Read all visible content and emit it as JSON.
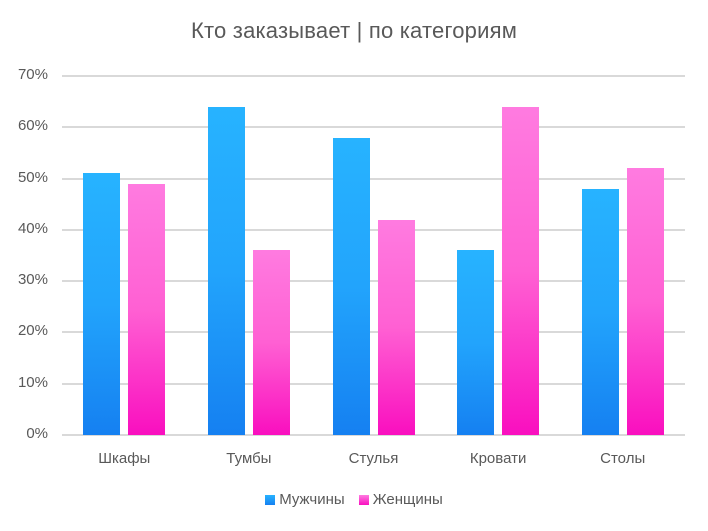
{
  "chart_data": {
    "type": "bar",
    "title": "Кто заказывает | по категориям",
    "xlabel": "",
    "ylabel": "",
    "categories": [
      "Шкафы",
      "Тумбы",
      "Стулья",
      "Кровати",
      "Столы"
    ],
    "series": [
      {
        "name": "Мужчины",
        "values": [
          51,
          64,
          58,
          36,
          48
        ],
        "color": "#1E90FF"
      },
      {
        "name": "Женщины",
        "values": [
          49,
          36,
          42,
          64,
          52
        ],
        "color": "#FF33CC"
      }
    ],
    "value_unit": "%",
    "ylim": [
      0,
      70
    ],
    "yticks": [
      "0%",
      "10%",
      "20%",
      "30%",
      "40%",
      "50%",
      "60%",
      "70%"
    ],
    "grid": true,
    "legend_position": "bottom"
  },
  "title": "Кто заказывает | по категориям",
  "legend": {
    "men": "Мужчины",
    "women": "Женщины"
  },
  "colors": {
    "men_top": "#27b3ff",
    "men_bottom": "#1580f1",
    "women_top": "#ff7be0",
    "women_bottom": "#f90fbf",
    "grid": "#d9d9d9",
    "text": "#595959"
  }
}
